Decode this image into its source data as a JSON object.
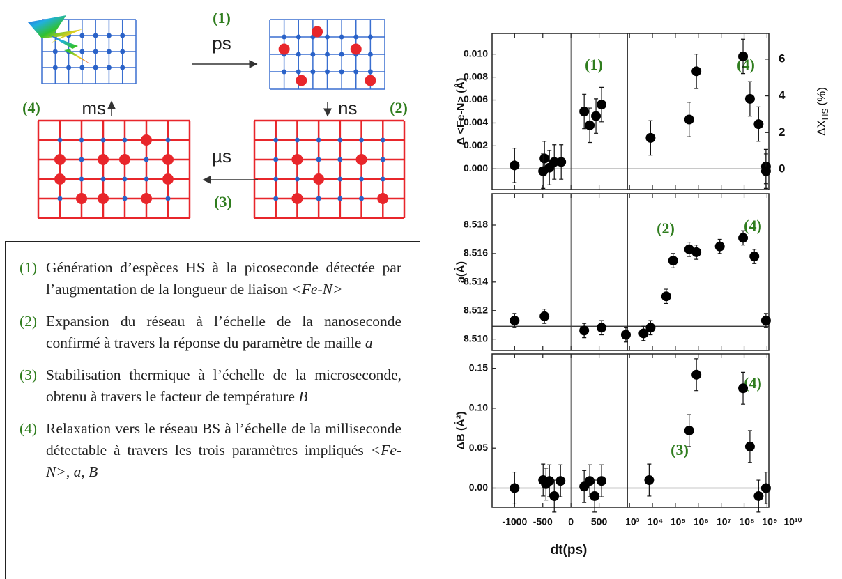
{
  "diagram": {
    "steps": [
      {
        "label": "(1)",
        "time": "ps"
      },
      {
        "label": "(2)",
        "time": "ns"
      },
      {
        "label": "(3)",
        "time": "µs"
      },
      {
        "label": "(4)",
        "time": "ms"
      }
    ]
  },
  "notes": {
    "items": [
      {
        "number": "(1)",
        "text": "Génération d’espèces HS à la picoseconde détectée par l’augmentation de la longueur de liaison",
        "em": "<Fe-N>"
      },
      {
        "number": "(2)",
        "text": "Expansion du réseau à l’échelle de la nanoseconde confirmé à travers la réponse du paramètre de maille",
        "em": "a"
      },
      {
        "number": "(3)",
        "text": "Stabilisation thermique à l’échelle de la microseconde, obtenu à travers le facteur de température",
        "em": "B"
      },
      {
        "number": "(4)",
        "text": "Relaxation vers le réseau BS à l’échelle de la milliseconde détectable à travers les trois paramètres impliqués",
        "em": "<Fe-N>, a, B"
      }
    ]
  },
  "chart_data": {
    "type": "scatter",
    "xlabel": "dt(ps)",
    "x_axes": [
      {
        "scale": "linear",
        "xlim": [
          -1400,
          1000
        ],
        "xticks": [
          -1000,
          -500,
          0,
          500
        ],
        "vline": 0
      },
      {
        "scale": "log",
        "xlim": [
          800,
          1200000000
        ],
        "xticks": [
          {
            "value": 1000,
            "label": "10³"
          },
          {
            "value": 10000,
            "label": "10⁴"
          },
          {
            "value": 100000,
            "label": "10⁵"
          },
          {
            "value": 1000000,
            "label": "10⁶"
          },
          {
            "value": 10000000,
            "label": "10⁷"
          },
          {
            "value": 100000000,
            "label": "10⁸"
          },
          {
            "value": 1000000000,
            "label": "10⁹"
          },
          {
            "value": 10000000000,
            "label": "10¹⁰"
          }
        ]
      }
    ],
    "rows": [
      {
        "ylabel": "Δ <Fe-N> (Å)",
        "ylim": [
          -0.0018,
          0.0118
        ],
        "yticks": [
          {
            "value": 0,
            "label": "0.000"
          },
          0.002,
          0.004,
          0.006,
          0.008,
          {
            "value": 0.01,
            "label": "0.010"
          }
        ],
        "y2label": {
          "main": "ΔX",
          "sub": "HS",
          "unit": "(%)"
        },
        "y2lim": [
          -1.1,
          7.4
        ],
        "y2ticks": [
          0,
          2,
          4,
          6
        ],
        "hline": 0,
        "annotations": [
          "(1)",
          "(4)"
        ],
        "panels": [
          {
            "x": [
              -1000,
              -470,
              -494,
              -383,
              -296,
              -173,
              235,
              333,
              444,
              543
            ],
            "values": [
              0.0003,
              0.0009,
              -0.0002,
              0.0001,
              0.0006,
              0.0006,
              0.005,
              0.0038,
              0.0046,
              0.0056
            ],
            "errors": [
              0.0015,
              0.0015,
              0.0015,
              0.0015,
              0.0015,
              0.0015,
              0.0015,
              0.0015,
              0.0015,
              0.0015
            ]
          },
          {
            "x": [
              8300,
              400000,
              830000,
              90000000,
              180000000,
              430000000,
              900000000,
              900000000
            ],
            "values": [
              0.0027,
              0.0043,
              0.0085,
              0.0098,
              0.0061,
              0.0039,
              0.0002,
              -0.0002
            ],
            "errors": [
              0.0015,
              0.0015,
              0.0015,
              0.0015,
              0.0015,
              0.0015,
              0.0015,
              0.0015
            ]
          }
        ]
      },
      {
        "ylabel": "a(Å)",
        "ylim": [
          8.5092,
          8.5202
        ],
        "yticks": [
          {
            "value": 8.51,
            "label": "8.510"
          },
          8.512,
          8.514,
          8.516,
          8.518
        ],
        "hline": 8.5109,
        "annotations": [
          "(2)",
          "(4)"
        ],
        "panels": [
          {
            "x": [
              -1000,
              -470,
              235,
              543,
              975
            ],
            "values": [
              8.5113,
              8.5116,
              8.5106,
              8.5108,
              8.5103
            ],
            "errors": [
              0.0005,
              0.0005,
              0.0005,
              0.0005,
              0.0005
            ]
          },
          {
            "x": [
              4100,
              8300,
              40000,
              80000,
              400000,
              830000,
              8700000,
              90000000,
              280000000,
              900000000
            ],
            "values": [
              8.5104,
              8.5108,
              8.513,
              8.5155,
              8.5163,
              8.5161,
              8.5165,
              8.5171,
              8.5158,
              8.5113
            ],
            "errors": [
              0.0005,
              0.0005,
              0.0005,
              0.0005,
              0.0005,
              0.0005,
              0.0005,
              0.0005,
              0.0005,
              0.0005
            ]
          }
        ]
      },
      {
        "ylabel": "ΔB (Å²)",
        "ylim": [
          -0.024,
          0.168
        ],
        "yticks": [
          {
            "value": 0,
            "label": "0.00"
          },
          0.05,
          {
            "value": 0.1,
            "label": "0.10"
          },
          0.15
        ],
        "hline": 0,
        "annotations": [
          "(4)",
          "(3)"
        ],
        "panels": [
          {
            "x": [
              -1000,
              -494,
              -444,
              -383,
              -296,
              -185,
              235,
              333,
              420,
              543
            ],
            "values": [
              0,
              0.01,
              0.005,
              0.009,
              -0.01,
              0.009,
              0.002,
              0.009,
              -0.01,
              0.009
            ],
            "errors": [
              0.02,
              0.02,
              0.02,
              0.02,
              0.02,
              0.02,
              0.02,
              0.02,
              0.02,
              0.02
            ]
          },
          {
            "x": [
              7200,
              400000,
              830000,
              90000000,
              180000000,
              430000000,
              900000000
            ],
            "values": [
              0.01,
              0.072,
              0.142,
              0.125,
              0.052,
              -0.01,
              0
            ],
            "errors": [
              0.02,
              0.02,
              0.02,
              0.02,
              0.02,
              0.02,
              0.02
            ]
          }
        ]
      }
    ]
  }
}
